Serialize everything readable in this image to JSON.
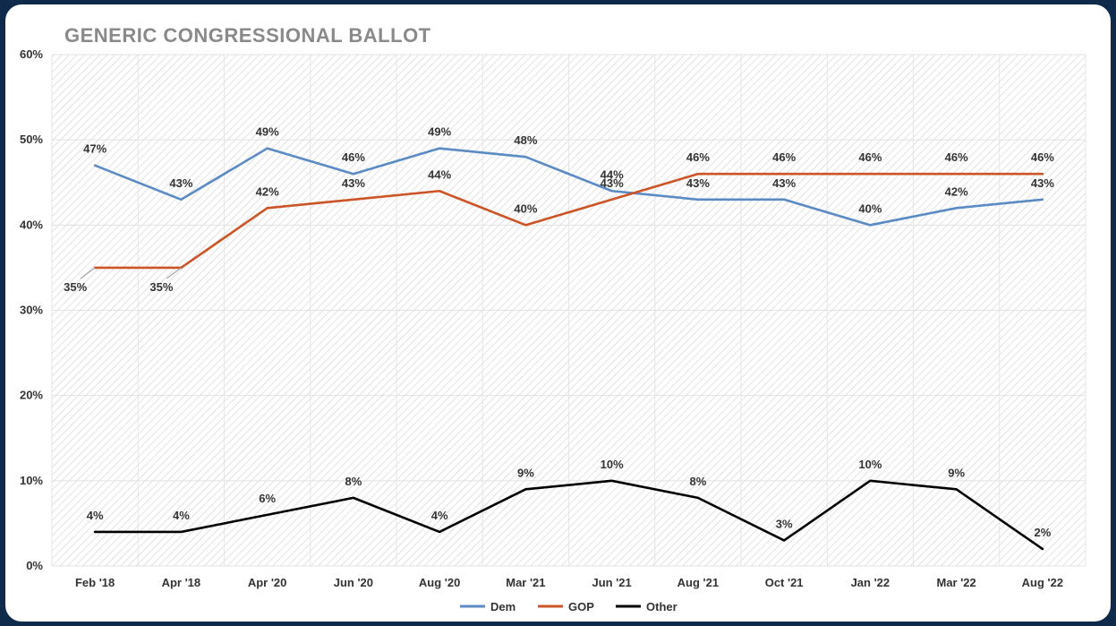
{
  "chart_data": {
    "type": "line",
    "title": "GENERIC CONGRESSIONAL BALLOT",
    "categories": [
      "Feb '18",
      "Apr '18",
      "Apr '20",
      "Jun '20",
      "Aug '20",
      "Mar '21",
      "Jun '21",
      "Aug '21",
      "Oct '21",
      "Jan '22",
      "Mar '22",
      "Aug '22"
    ],
    "ylim": [
      0,
      60
    ],
    "yticks": [
      "0%",
      "10%",
      "20%",
      "30%",
      "40%",
      "50%",
      "60%"
    ],
    "ytick_values": [
      0,
      10,
      20,
      30,
      40,
      50,
      60
    ],
    "grid": true,
    "legend_position": "bottom-center",
    "series": [
      {
        "name": "Dem",
        "color": "#5b8bc4",
        "values": [
          47,
          43,
          49,
          46,
          49,
          48,
          44,
          43,
          43,
          40,
          42,
          43
        ],
        "labels": [
          "47%",
          "43%",
          "49%",
          "46%",
          "49%",
          "48%",
          "44%",
          "43%",
          "43%",
          "40%",
          "42%",
          "43%"
        ]
      },
      {
        "name": "GOP",
        "color": "#cc5528",
        "values": [
          35,
          35,
          42,
          43,
          44,
          40,
          43,
          46,
          46,
          46,
          46,
          46
        ],
        "labels": [
          "35%",
          "35%",
          "42%",
          "43%",
          "44%",
          "40%",
          "43%",
          "46%",
          "46%",
          "46%",
          "46%",
          "46%"
        ]
      },
      {
        "name": "Other",
        "color": "#000000",
        "values": [
          4,
          4,
          6,
          8,
          4,
          9,
          10,
          8,
          3,
          10,
          9,
          2
        ],
        "labels": [
          "4%",
          "4%",
          "6%",
          "8%",
          "4%",
          "9%",
          "10%",
          "8%",
          "3%",
          "10%",
          "9%",
          "2%"
        ]
      }
    ]
  }
}
